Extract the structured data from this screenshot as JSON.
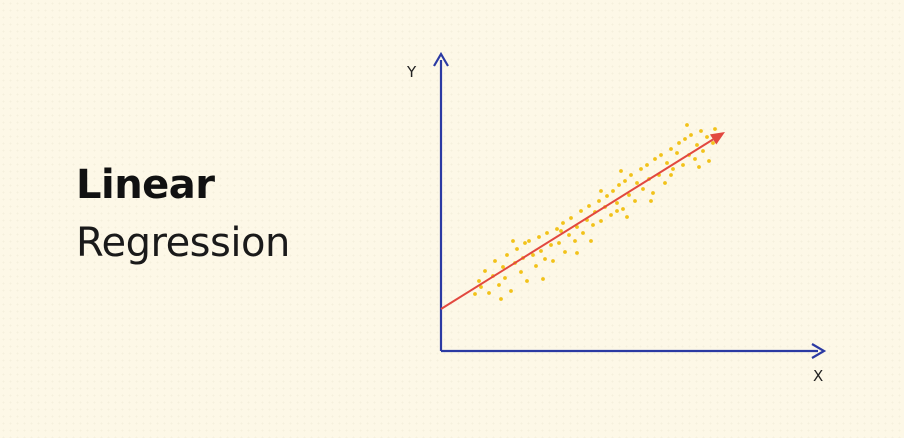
{
  "title": {
    "bold": "Linear",
    "light": "Regression"
  },
  "chart_data": {
    "type": "scatter",
    "xlabel": "X",
    "ylabel": "Y",
    "xlim": [
      0,
      380
    ],
    "ylim": [
      0,
      290
    ],
    "regression_line": {
      "x": [
        0,
        284
      ],
      "y": [
        42,
        219
      ],
      "arrow_end": true
    },
    "points": [
      [
        34,
        57
      ],
      [
        38,
        70
      ],
      [
        40,
        64
      ],
      [
        44,
        80
      ],
      [
        48,
        58
      ],
      [
        52,
        75
      ],
      [
        54,
        90
      ],
      [
        58,
        66
      ],
      [
        62,
        84
      ],
      [
        64,
        73
      ],
      [
        66,
        96
      ],
      [
        70,
        60
      ],
      [
        74,
        88
      ],
      [
        76,
        102
      ],
      [
        80,
        79
      ],
      [
        82,
        93
      ],
      [
        86,
        70
      ],
      [
        88,
        110
      ],
      [
        92,
        96
      ],
      [
        95,
        85
      ],
      [
        98,
        114
      ],
      [
        100,
        100
      ],
      [
        104,
        92
      ],
      [
        106,
        118
      ],
      [
        110,
        106
      ],
      [
        112,
        90
      ],
      [
        116,
        122
      ],
      [
        118,
        108
      ],
      [
        122,
        128
      ],
      [
        124,
        99
      ],
      [
        128,
        116
      ],
      [
        130,
        133
      ],
      [
        134,
        110
      ],
      [
        136,
        124
      ],
      [
        140,
        140
      ],
      [
        142,
        118
      ],
      [
        146,
        131
      ],
      [
        148,
        145
      ],
      [
        152,
        126
      ],
      [
        154,
        139
      ],
      [
        158,
        150
      ],
      [
        160,
        130
      ],
      [
        164,
        144
      ],
      [
        166,
        155
      ],
      [
        170,
        136
      ],
      [
        172,
        160
      ],
      [
        176,
        148
      ],
      [
        178,
        166
      ],
      [
        182,
        142
      ],
      [
        184,
        170
      ],
      [
        188,
        156
      ],
      [
        190,
        176
      ],
      [
        194,
        150
      ],
      [
        196,
        168
      ],
      [
        200,
        182
      ],
      [
        202,
        162
      ],
      [
        206,
        186
      ],
      [
        208,
        172
      ],
      [
        212,
        158
      ],
      [
        214,
        192
      ],
      [
        218,
        176
      ],
      [
        220,
        196
      ],
      [
        224,
        168
      ],
      [
        226,
        188
      ],
      [
        230,
        202
      ],
      [
        232,
        182
      ],
      [
        236,
        198
      ],
      [
        238,
        208
      ],
      [
        242,
        186
      ],
      [
        244,
        212
      ],
      [
        248,
        196
      ],
      [
        250,
        216
      ],
      [
        254,
        192
      ],
      [
        256,
        206
      ],
      [
        260,
        220
      ],
      [
        262,
        200
      ],
      [
        266,
        214
      ],
      [
        268,
        190
      ],
      [
        272,
        208
      ],
      [
        274,
        222
      ],
      [
        176,
        140
      ],
      [
        180,
        180
      ],
      [
        186,
        134
      ],
      [
        120,
        120
      ],
      [
        84,
        108
      ],
      [
        60,
        52
      ],
      [
        160,
        160
      ],
      [
        210,
        150
      ],
      [
        246,
        226
      ],
      [
        258,
        184
      ],
      [
        136,
        98
      ],
      [
        102,
        72
      ],
      [
        72,
        110
      ],
      [
        150,
        110
      ],
      [
        230,
        176
      ]
    ],
    "colors": {
      "axis": "#2b3aa3",
      "line": "#e2483f",
      "points": "#f2c21a"
    }
  }
}
